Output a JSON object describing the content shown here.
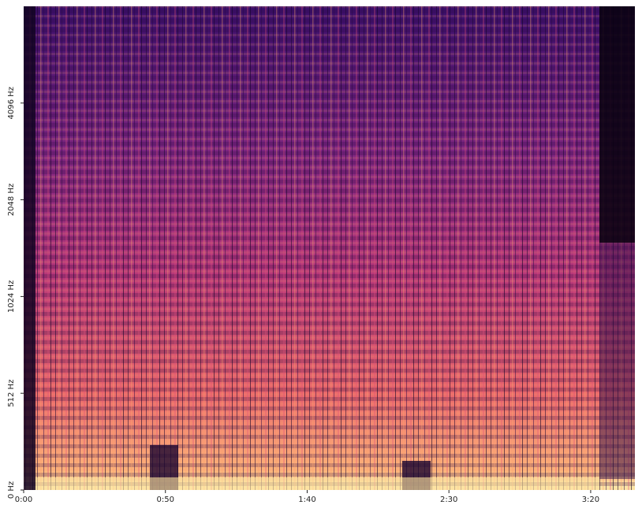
{
  "chart_data": {
    "type": "spectrogram",
    "colormap": "magma",
    "xlim": [
      0,
      215.6
    ],
    "xticks": [
      {
        "value": 0,
        "label": "0:00"
      },
      {
        "value": 50,
        "label": "0:50"
      },
      {
        "value": 100,
        "label": "1:40"
      },
      {
        "value": 150,
        "label": "2:30"
      },
      {
        "value": 200,
        "label": "3:20"
      }
    ],
    "yscale": "symlog",
    "linthresh": 512,
    "ylim": [
      0,
      8192
    ],
    "yticks": [
      {
        "value": 0,
        "label": "0 Hz"
      },
      {
        "value": 512,
        "label": "512 Hz"
      },
      {
        "value": 1024,
        "label": "1024 Hz"
      },
      {
        "value": 2048,
        "label": "2048 Hz"
      },
      {
        "value": 4096,
        "label": "4096 Hz"
      }
    ]
  }
}
